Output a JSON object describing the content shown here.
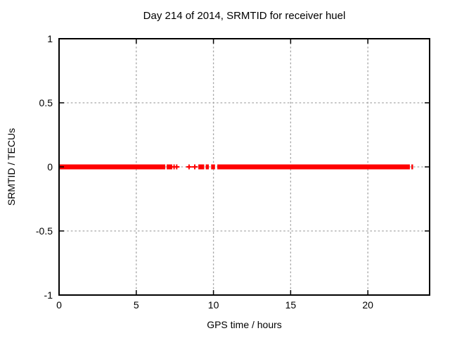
{
  "chart_data": {
    "type": "scatter",
    "title": "Day 214 of 2014, SRMTID for receiver huel",
    "xlabel": "GPS time / hours",
    "ylabel": "SRMTID / TECUs",
    "xlim": [
      0,
      24
    ],
    "ylim": [
      -1,
      1
    ],
    "x_ticks": [
      0,
      5,
      10,
      15,
      20
    ],
    "x_tick_labels": [
      "0",
      "5",
      "10",
      "15",
      "20"
    ],
    "y_ticks": [
      1,
      0.5,
      0,
      -0.5,
      -1
    ],
    "y_tick_labels": [
      "1",
      "0.5",
      "0",
      "-0.5",
      "-1"
    ],
    "grid": true,
    "legend": "none",
    "marker": "plus",
    "series": [
      {
        "name": "SRMTID",
        "color": "#ff0000",
        "y_value": 0,
        "segments_x_hours": [
          [
            0.0,
            6.88
          ],
          [
            6.97,
            7.33
          ],
          [
            9.02,
            9.4
          ],
          [
            9.5,
            9.7
          ],
          [
            9.85,
            10.1
          ],
          [
            10.25,
            22.72
          ],
          [
            22.82,
            22.93
          ]
        ],
        "isolated_points_x_hours": [
          7.45,
          7.62,
          8.42,
          8.79
        ]
      }
    ],
    "colors": {
      "background": "#ffffff",
      "border": "#000000",
      "grid": "#a6a6a6",
      "text": "#000000"
    }
  }
}
